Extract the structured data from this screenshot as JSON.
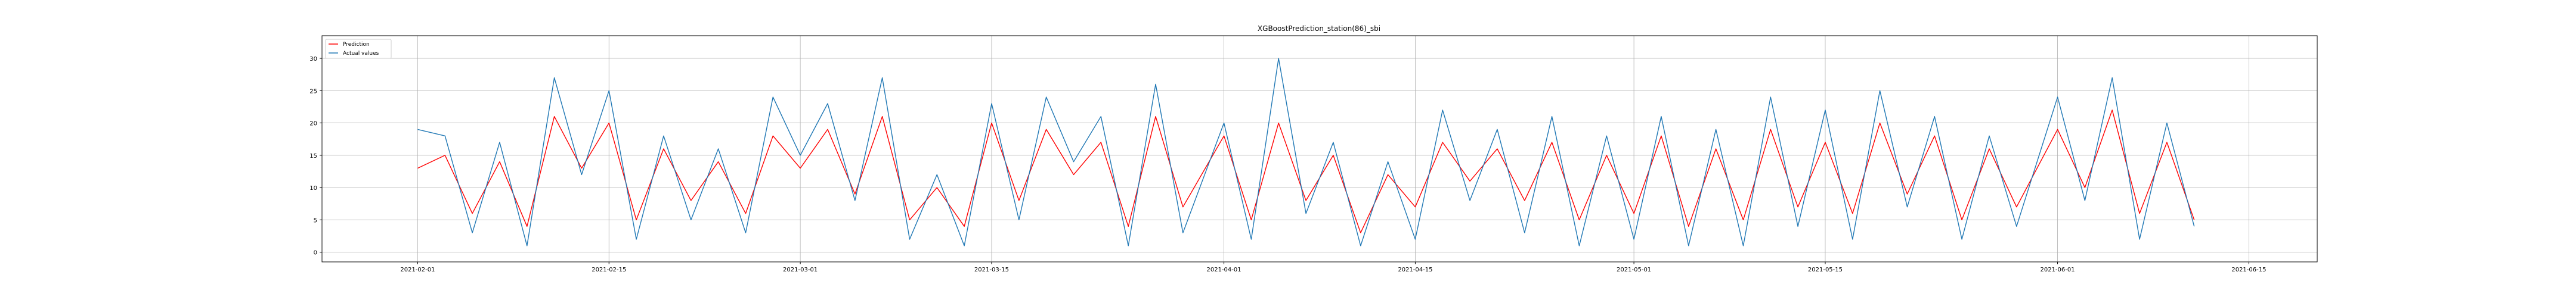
{
  "chart_data": {
    "type": "line",
    "title": "XGBoostPrediction_station(86)_sbi",
    "xlabel": "",
    "ylabel": "",
    "x_range": [
      "2021-01-25",
      "2021-06-20"
    ],
    "ylim": [
      -1.5,
      33.5
    ],
    "x_ticks": [
      "2021-02-01",
      "2021-02-15",
      "2021-03-01",
      "2021-03-15",
      "2021-04-01",
      "2021-04-15",
      "2021-05-01",
      "2021-05-15",
      "2021-06-01",
      "2021-06-15"
    ],
    "y_ticks": [
      0,
      5,
      10,
      15,
      20,
      25,
      30
    ],
    "grid": true,
    "legend": {
      "position": "top-left",
      "entries": [
        "Prediction",
        "Actual values"
      ]
    },
    "colors": {
      "Prediction": "#ff0000",
      "Actual values": "#1f77b4"
    },
    "series": [
      {
        "name": "Prediction",
        "x": [
          "2021-02-01",
          "2021-02-03",
          "2021-02-05",
          "2021-02-07",
          "2021-02-09",
          "2021-02-11",
          "2021-02-13",
          "2021-02-15",
          "2021-02-17",
          "2021-02-19",
          "2021-02-21",
          "2021-02-23",
          "2021-02-25",
          "2021-02-27",
          "2021-03-01",
          "2021-03-03",
          "2021-03-05",
          "2021-03-07",
          "2021-03-09",
          "2021-03-11",
          "2021-03-13",
          "2021-03-15",
          "2021-03-17",
          "2021-03-19",
          "2021-03-21",
          "2021-03-23",
          "2021-03-25",
          "2021-03-27",
          "2021-03-29",
          "2021-04-01",
          "2021-04-03",
          "2021-04-05",
          "2021-04-07",
          "2021-04-09",
          "2021-04-11",
          "2021-04-13",
          "2021-04-15",
          "2021-04-17",
          "2021-04-19",
          "2021-04-21",
          "2021-04-23",
          "2021-04-25",
          "2021-04-27",
          "2021-04-29",
          "2021-05-01",
          "2021-05-03",
          "2021-05-05",
          "2021-05-07",
          "2021-05-09",
          "2021-05-11",
          "2021-05-13",
          "2021-05-15",
          "2021-05-17",
          "2021-05-19",
          "2021-05-21",
          "2021-05-23",
          "2021-05-25",
          "2021-05-27",
          "2021-05-29",
          "2021-06-01",
          "2021-06-03",
          "2021-06-05",
          "2021-06-07",
          "2021-06-09",
          "2021-06-11"
        ],
        "values": [
          13,
          15,
          6,
          14,
          4,
          21,
          13,
          20,
          5,
          16,
          8,
          14,
          6,
          18,
          13,
          19,
          9,
          21,
          5,
          10,
          4,
          20,
          8,
          19,
          12,
          17,
          4,
          21,
          7,
          18,
          5,
          20,
          8,
          15,
          3,
          12,
          7,
          17,
          11,
          16,
          8,
          17,
          5,
          15,
          6,
          18,
          4,
          16,
          5,
          19,
          7,
          17,
          6,
          20,
          9,
          18,
          5,
          16,
          7,
          19,
          10,
          22,
          6,
          17,
          5
        ]
      },
      {
        "name": "Actual values",
        "x": [
          "2021-02-01",
          "2021-02-03",
          "2021-02-05",
          "2021-02-07",
          "2021-02-09",
          "2021-02-11",
          "2021-02-13",
          "2021-02-15",
          "2021-02-17",
          "2021-02-19",
          "2021-02-21",
          "2021-02-23",
          "2021-02-25",
          "2021-02-27",
          "2021-03-01",
          "2021-03-03",
          "2021-03-05",
          "2021-03-07",
          "2021-03-09",
          "2021-03-11",
          "2021-03-13",
          "2021-03-15",
          "2021-03-17",
          "2021-03-19",
          "2021-03-21",
          "2021-03-23",
          "2021-03-25",
          "2021-03-27",
          "2021-03-29",
          "2021-04-01",
          "2021-04-03",
          "2021-04-05",
          "2021-04-07",
          "2021-04-09",
          "2021-04-11",
          "2021-04-13",
          "2021-04-15",
          "2021-04-17",
          "2021-04-19",
          "2021-04-21",
          "2021-04-23",
          "2021-04-25",
          "2021-04-27",
          "2021-04-29",
          "2021-05-01",
          "2021-05-03",
          "2021-05-05",
          "2021-05-07",
          "2021-05-09",
          "2021-05-11",
          "2021-05-13",
          "2021-05-15",
          "2021-05-17",
          "2021-05-19",
          "2021-05-21",
          "2021-05-23",
          "2021-05-25",
          "2021-05-27",
          "2021-05-29",
          "2021-06-01",
          "2021-06-03",
          "2021-06-05",
          "2021-06-07",
          "2021-06-09",
          "2021-06-11"
        ],
        "values": [
          19,
          18,
          3,
          17,
          1,
          27,
          12,
          25,
          2,
          18,
          5,
          16,
          3,
          24,
          15,
          23,
          8,
          27,
          2,
          12,
          1,
          23,
          5,
          24,
          14,
          21,
          1,
          26,
          3,
          20,
          2,
          30,
          6,
          17,
          1,
          14,
          2,
          22,
          8,
          19,
          3,
          21,
          1,
          18,
          2,
          21,
          1,
          19,
          1,
          24,
          4,
          22,
          2,
          25,
          7,
          21,
          2,
          18,
          4,
          24,
          8,
          27,
          2,
          20,
          4
        ]
      }
    ]
  }
}
